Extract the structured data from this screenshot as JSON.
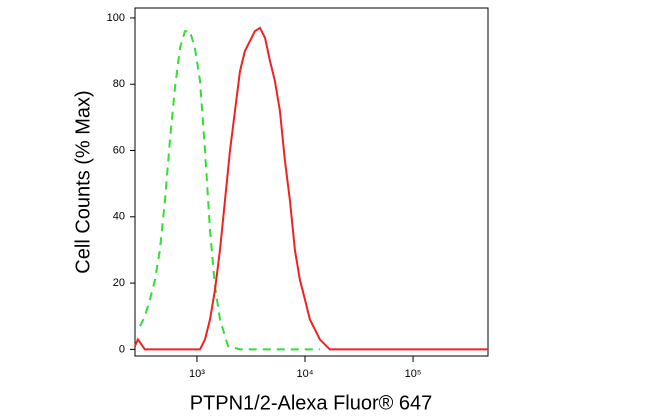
{
  "chart_data": {
    "type": "line",
    "x_label": "PTPN1/2-Alexa Fluor® 647",
    "y_label": "Cell Counts (% Max)",
    "x_scale": "log",
    "xlim": [
      267,
      494000
    ],
    "xticks": [
      {
        "value": 1000,
        "label": "10³"
      },
      {
        "value": 10000,
        "label": "10⁴"
      },
      {
        "value": 100000,
        "label": "10⁵"
      }
    ],
    "ylim": [
      -2,
      103
    ],
    "yticks": [
      0,
      20,
      40,
      60,
      80,
      100
    ],
    "series": [
      {
        "color": "#33dd33",
        "line_style": "dashed",
        "x": [
          297,
          330,
          367,
          409,
          454,
          506,
          562,
          626,
          696,
          774,
          861,
          958,
          1066,
          1186,
          1320,
          1468,
          1633,
          1937,
          2500,
          13750
        ],
        "values": [
          7,
          10,
          15,
          21,
          30,
          45,
          63,
          79,
          91,
          96,
          96,
          91,
          81,
          60,
          36,
          19,
          9,
          1,
          0,
          0
        ]
      },
      {
        "color": "#ee2222",
        "line_style": "solid",
        "x": [
          267,
          284,
          330,
          1066,
          1186,
          1320,
          1468,
          1633,
          1817,
          2020,
          2250,
          2500,
          2780,
          3090,
          3440,
          3830,
          4260,
          4740,
          5270,
          5860,
          6520,
          7250,
          8070,
          8970,
          10000,
          11100,
          13750,
          17000,
          494000
        ],
        "values": [
          1,
          3,
          0,
          0,
          3,
          9,
          18,
          30,
          45,
          60,
          72,
          84,
          90,
          93,
          96,
          97,
          94,
          87,
          81,
          72,
          57,
          45,
          30,
          21,
          15,
          9,
          3,
          0,
          0
        ]
      }
    ]
  }
}
